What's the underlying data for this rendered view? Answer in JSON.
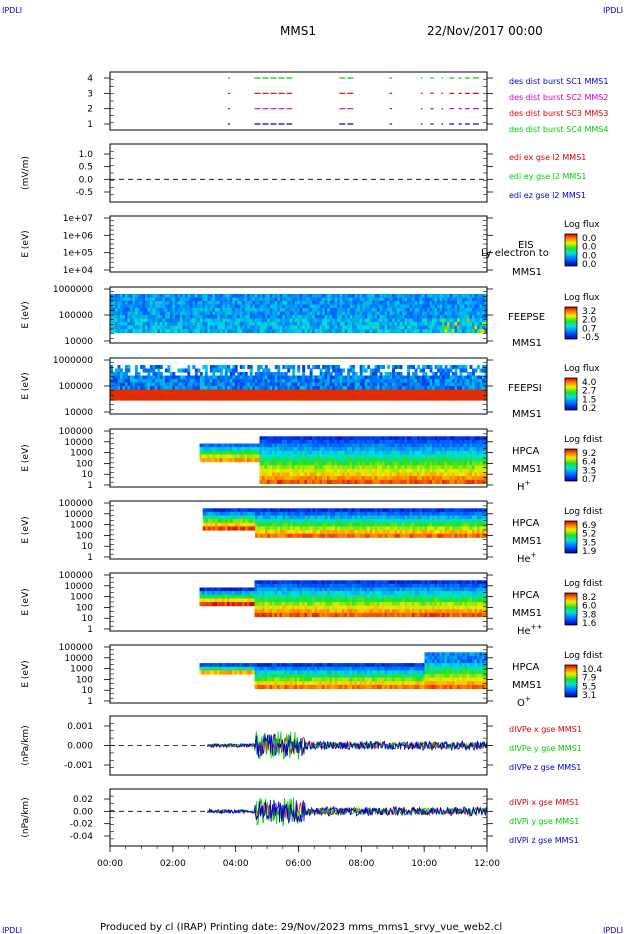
{
  "header": {
    "corner_left_top": "IPDLI",
    "corner_right_top": "IPDLI",
    "title": "MMS1",
    "date": "22/Nov/2017 00:00"
  },
  "footer": {
    "text": "Produced by cl (IRAP)   Printing date: 29/Nov/2023   mms_mms1_srvy_vue_web2.cl",
    "corner_left_bottom": "IPDLI",
    "corner_right_bottom": "IPDLI"
  },
  "colors": {
    "red": "#dd0000",
    "green": "#00cc00",
    "blue": "#0000cc",
    "magenta": "#cc00cc"
  },
  "chart_data": [
    {
      "id": "p1",
      "type": "line",
      "yticks": [
        "1",
        "2",
        "3",
        "4"
      ],
      "ylim": [
        0.5,
        4.5
      ],
      "legend": [
        {
          "text": "des dist burst SC1 MMS1",
          "color": "#0000cc"
        },
        {
          "text": "des dist burst SC2 MMS2",
          "color": "#cc00cc"
        },
        {
          "text": "des dist burst SC3 MMS3",
          "color": "#dd0000"
        },
        {
          "text": "des dist burst SC4 MMS4",
          "color": "#00cc00"
        }
      ],
      "intervals_hours": [
        [
          3.75,
          3.82
        ],
        [
          4.6,
          5.8
        ],
        [
          7.3,
          7.75
        ],
        [
          8.9,
          8.98
        ],
        [
          9.9,
          9.95
        ],
        [
          10.2,
          10.3
        ],
        [
          10.55,
          10.6
        ],
        [
          10.8,
          10.95
        ],
        [
          11.1,
          11.2
        ],
        [
          11.3,
          11.45
        ],
        [
          11.55,
          11.75
        ]
      ]
    },
    {
      "id": "p2",
      "type": "line",
      "ylabel": "(mV/m)",
      "yticks": [
        "1.0",
        "0.5",
        "0.0",
        "-0.5"
      ],
      "ylim": [
        -0.8,
        1.25
      ],
      "legend": [
        {
          "text": "edi ex gse l2 MMS1",
          "color": "#dd0000"
        },
        {
          "text": "edi ey gse l2 MMS1",
          "color": "#00cc00"
        },
        {
          "text": "edi ez gse l2 MMS1",
          "color": "#0000cc"
        }
      ]
    },
    {
      "id": "p3",
      "type": "heatmap",
      "ylabel": "E (eV)",
      "yticks": [
        "1e+07",
        "1e+06",
        "1e+05",
        "1e+04"
      ],
      "labels": [
        "EIS",
        "MMS1"
      ],
      "overlap_text": "Ly electron to",
      "colorbar": {
        "title": "Log flux",
        "ticks": [
          "0.0",
          "0.0",
          "0.0",
          "0.0"
        ]
      }
    },
    {
      "id": "p4",
      "type": "heatmap",
      "ylabel": "E (eV)",
      "yticks": [
        "1000000",
        "100000",
        "10000"
      ],
      "labels": [
        "FEEPSE",
        "MMS1"
      ],
      "colorbar": {
        "title": "Log flux",
        "ticks": [
          "3.2",
          "2.0",
          "0.7",
          "-0.5"
        ]
      },
      "time_range_hours": [
        0,
        12
      ]
    },
    {
      "id": "p5",
      "type": "heatmap",
      "ylabel": "E (eV)",
      "yticks": [
        "1000000",
        "100000",
        "10000"
      ],
      "labels": [
        "FEEPSI",
        "MMS1"
      ],
      "colorbar": {
        "title": "Log flux",
        "ticks": [
          "4.0",
          "2.7",
          "1.5",
          "0.2"
        ]
      },
      "time_range_hours": [
        0,
        12
      ]
    },
    {
      "id": "p6",
      "type": "heatmap",
      "ylabel": "E (eV)",
      "yticks": [
        "100000",
        "10000",
        "1000",
        "100",
        "10",
        "1"
      ],
      "labels": [
        "HPCA",
        "MMS1",
        "H+"
      ],
      "colorbar": {
        "title": "Log fdist",
        "ticks": [
          "9.2",
          "6.4",
          "3.5",
          "0.7"
        ]
      },
      "time_range_hours": [
        2.85,
        12
      ]
    },
    {
      "id": "p7",
      "type": "heatmap",
      "ylabel": "E (eV)",
      "yticks": [
        "100000",
        "10000",
        "1000",
        "100",
        "10",
        "1"
      ],
      "labels": [
        "HPCA",
        "MMS1",
        "He+"
      ],
      "colorbar": {
        "title": "Log fdist",
        "ticks": [
          "6.9",
          "5.2",
          "3.5",
          "1.9"
        ]
      },
      "time_range_hours": [
        2.95,
        12
      ]
    },
    {
      "id": "p8",
      "type": "heatmap",
      "ylabel": "E (eV)",
      "yticks": [
        "100000",
        "10000",
        "1000",
        "100",
        "10",
        "1"
      ],
      "labels": [
        "HPCA",
        "MMS1",
        "He++"
      ],
      "colorbar": {
        "title": "Log fdist",
        "ticks": [
          "8.2",
          "6.0",
          "3.8",
          "1.6"
        ]
      },
      "time_range_hours": [
        2.85,
        12
      ]
    },
    {
      "id": "p9",
      "type": "heatmap",
      "ylabel": "E (eV)",
      "yticks": [
        "100000",
        "10000",
        "1000",
        "100",
        "10",
        "1"
      ],
      "labels": [
        "HPCA",
        "MMS1",
        "O+"
      ],
      "colorbar": {
        "title": "Log fdist",
        "ticks": [
          "10.4",
          "7.9",
          "5.5",
          "3.1"
        ]
      },
      "time_range_hours": [
        2.85,
        12
      ]
    },
    {
      "id": "p10",
      "type": "line",
      "ylabel": "(nPa/km)",
      "yticks": [
        "0.001",
        "0.000",
        "-0.001"
      ],
      "ylim": [
        -0.0016,
        0.0016
      ],
      "legend": [
        {
          "text": "dIVPe x gse MMS1",
          "color": "#dd0000"
        },
        {
          "text": "dIVPe y gse MMS1",
          "color": "#00cc00"
        },
        {
          "text": "dIVPe z gse MMS1",
          "color": "#0000cc"
        }
      ],
      "time_range_hours": [
        3.1,
        12
      ]
    },
    {
      "id": "p11",
      "type": "line",
      "ylabel": "(nPa/km)",
      "yticks": [
        "0.02",
        "0.00",
        "-0.02",
        "-0.04"
      ],
      "ylim": [
        -0.045,
        0.032
      ],
      "legend": [
        {
          "text": "dIVPi x gse MMS1",
          "color": "#dd0000"
        },
        {
          "text": "dIVPi y gse MMS1",
          "color": "#00cc00"
        },
        {
          "text": "dIVPi z gse MMS1",
          "color": "#0000cc"
        }
      ],
      "time_range_hours": [
        3.1,
        12
      ]
    }
  ],
  "xaxis": {
    "ticks": [
      "00:00",
      "02:00",
      "04:00",
      "06:00",
      "08:00",
      "10:00",
      "12:00"
    ],
    "range_hours": [
      0,
      12
    ]
  }
}
